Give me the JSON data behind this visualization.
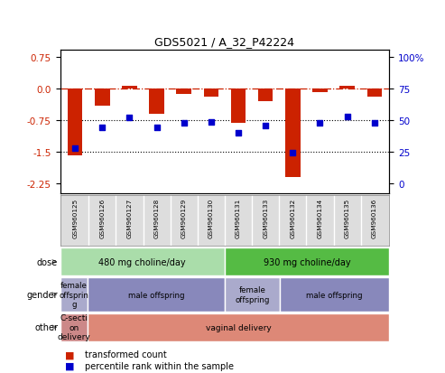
{
  "title": "GDS5021 / A_32_P42224",
  "samples": [
    "GSM960125",
    "GSM960126",
    "GSM960127",
    "GSM960128",
    "GSM960129",
    "GSM960130",
    "GSM960131",
    "GSM960133",
    "GSM960132",
    "GSM960134",
    "GSM960135",
    "GSM960136"
  ],
  "bar_values": [
    -1.6,
    -0.42,
    0.06,
    -0.6,
    -0.13,
    -0.2,
    -0.82,
    -0.3,
    -2.1,
    -0.1,
    0.07,
    -0.2
  ],
  "dot_values": [
    -1.42,
    -0.92,
    -0.7,
    -0.92,
    -0.82,
    -0.8,
    -1.05,
    -0.88,
    -1.52,
    -0.82,
    -0.68,
    -0.82
  ],
  "left_yticks": [
    0.75,
    0.0,
    -0.75,
    -1.5,
    -2.25
  ],
  "right_yticks_vals": [
    100,
    75,
    50,
    25,
    0
  ],
  "right_yticks_pos": [
    0.75,
    0.0,
    -0.75,
    -1.5,
    -2.25
  ],
  "bar_color": "#cc2200",
  "dot_color": "#0000cc",
  "hline_y": 0.0,
  "dotted_lines": [
    -0.75,
    -1.5
  ],
  "dose_groups": [
    {
      "label": "480 mg choline/day",
      "start": 0,
      "end": 6,
      "color": "#aaddaa"
    },
    {
      "label": "930 mg choline/day",
      "start": 6,
      "end": 12,
      "color": "#55bb44"
    }
  ],
  "gender_groups": [
    {
      "label": "female\noffsprin\ng",
      "start": 0,
      "end": 1,
      "color": "#aaaacc"
    },
    {
      "label": "male offspring",
      "start": 1,
      "end": 6,
      "color": "#8888bb"
    },
    {
      "label": "female\noffspring",
      "start": 6,
      "end": 8,
      "color": "#aaaacc"
    },
    {
      "label": "male offspring",
      "start": 8,
      "end": 12,
      "color": "#8888bb"
    }
  ],
  "other_groups": [
    {
      "label": "C-secti\non\ndelivery",
      "start": 0,
      "end": 1,
      "color": "#cc8888"
    },
    {
      "label": "vaginal delivery",
      "start": 1,
      "end": 12,
      "color": "#dd8877"
    }
  ],
  "row_labels": [
    "dose",
    "gender",
    "other"
  ],
  "legend_items": [
    {
      "color": "#cc2200",
      "label": "transformed count"
    },
    {
      "color": "#0000cc",
      "label": "percentile rank within the sample"
    }
  ],
  "fig_width": 4.93,
  "fig_height": 4.14,
  "dpi": 100
}
